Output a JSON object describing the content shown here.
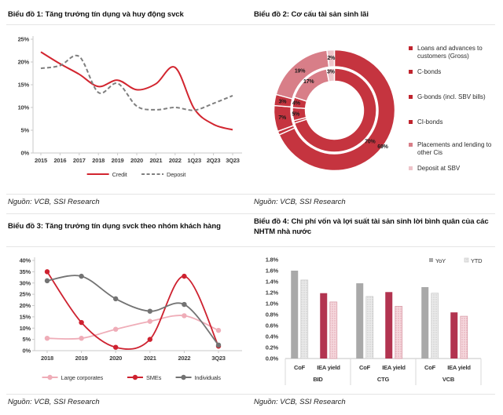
{
  "chart_data": [
    {
      "type": "line",
      "title": "Biểu đồ 1: Tăng trưởng tín dụng và huy động svck",
      "source": "Nguồn: VCB, SSI Research",
      "categories": [
        "2015",
        "2016",
        "2017",
        "2018",
        "2019",
        "2020",
        "2021",
        "2022",
        "1Q23",
        "2Q23",
        "3Q23"
      ],
      "series": [
        {
          "name": "Credit",
          "color": "#d2252f",
          "style": "solid",
          "values": [
            22.2,
            19.6,
            17.3,
            14.6,
            16.0,
            13.9,
            15.2,
            18.8,
            9.7,
            6.3,
            5.1
          ]
        },
        {
          "name": "Deposit",
          "color": "#7f7f7f",
          "style": "dashed",
          "values": [
            18.6,
            19.2,
            21.2,
            13.3,
            15.3,
            10.3,
            9.5,
            10.0,
            9.4,
            10.9,
            12.6
          ]
        }
      ],
      "ylim": [
        0,
        25
      ],
      "ytick_labels": [
        "0%",
        "5%",
        "10%",
        "15%",
        "20%",
        "25%"
      ],
      "unit": "%",
      "grid": false,
      "legend_position": "bottom"
    },
    {
      "type": "donut",
      "title": "Biểu đồ 2: Cơ cấu tài sản sinh lãi",
      "source": "Nguồn: VCB, SSI Research",
      "categories": [
        "Loans and advances to customers (Gross)",
        "C-bonds",
        "G-bonds (incl. SBV bills)",
        "CI-bonds",
        "Placements and lending to other Cis",
        "Deposit at SBV"
      ],
      "legend_colors": [
        "#c0242e",
        "#c0242e",
        "#c0242e",
        "#c0242e",
        "#d87e88",
        "#eec3c9"
      ],
      "slice_colors": [
        "#c5343f",
        "#c5343f",
        "#c5343f",
        "#c5343f",
        "#d87e88",
        "#eec3c9"
      ],
      "rings": [
        {
          "name": "outer",
          "values": [
            69,
            1,
            7,
            3,
            19,
            2
          ],
          "labels": [
            "69%",
            "",
            "7%",
            "3%",
            "19%",
            "2%"
          ]
        },
        {
          "name": "inner",
          "values": [
            70,
            1,
            5,
            4,
            17,
            3
          ],
          "labels": [
            "70%",
            "",
            "5%",
            "4%",
            "17%",
            "3%"
          ]
        }
      ],
      "legend_position": "right"
    },
    {
      "type": "line",
      "title": "Biểu đồ 3: Tăng trưởng tín dụng svck theo nhóm khách hàng",
      "source": "Nguồn: VCB, SSI Research",
      "categories": [
        "2018",
        "2019",
        "2020",
        "2021",
        "2022",
        "3Q23"
      ],
      "series": [
        {
          "name": "Large corporates",
          "color": "#efadb8",
          "style": "solid",
          "values": [
            5.5,
            5.5,
            9.5,
            13.0,
            15.5,
            9.0
          ]
        },
        {
          "name": "SMEs",
          "color": "#ce2230",
          "style": "solid",
          "values": [
            35.0,
            12.5,
            1.5,
            5.0,
            33.0,
            2.0
          ]
        },
        {
          "name": "Individuals",
          "color": "#737373",
          "style": "solid",
          "values": [
            31.0,
            33.0,
            23.0,
            17.5,
            20.5,
            2.5
          ]
        }
      ],
      "ylim": [
        0,
        40
      ],
      "ytick_labels": [
        "0%",
        "5%",
        "10%",
        "15%",
        "20%",
        "25%",
        "30%",
        "35%",
        "40%"
      ],
      "unit": "%",
      "grid": false,
      "markers": true,
      "legend_position": "bottom"
    },
    {
      "type": "bar",
      "title": "Biểu đồ 4: Chi phí vốn và lợi suất tài sản sinh lời bình quân của các NHTM nhà nước",
      "source": "Nguồn: VCB, SSI Research",
      "legend": [
        "YoY",
        "YTD"
      ],
      "groups": [
        {
          "bank": "BID",
          "items": [
            {
              "metric": "CoF",
              "yoy": 1.6,
              "ytd": 1.43
            },
            {
              "metric": "IEA yield",
              "yoy": 1.19,
              "ytd": 1.03
            }
          ]
        },
        {
          "bank": "CTG",
          "items": [
            {
              "metric": "CoF",
              "yoy": 1.37,
              "ytd": 1.13
            },
            {
              "metric": "IEA yield",
              "yoy": 1.21,
              "ytd": 0.95
            }
          ]
        },
        {
          "bank": "VCB",
          "items": [
            {
              "metric": "CoF",
              "yoy": 1.3,
              "ytd": 1.19
            },
            {
              "metric": "IEA yield",
              "yoy": 0.84,
              "ytd": 0.77
            }
          ]
        }
      ],
      "colors": {
        "cof_yoy": "#a9a9a9",
        "cof_ytd_bg": "#eaeaea",
        "cof_ytd_dot": "#c8c8c8",
        "iea_yoy": "#b23450",
        "iea_ytd_bg": "#f5d8dd",
        "iea_ytd_dot": "#e0a0ae"
      },
      "ylim": [
        0,
        1.8
      ],
      "ytick_labels": [
        "0.0%",
        "0.2%",
        "0.4%",
        "0.6%",
        "0.8%",
        "1.0%",
        "1.2%",
        "1.4%",
        "1.6%",
        "1.8%"
      ],
      "legend_position": "top-right"
    }
  ]
}
